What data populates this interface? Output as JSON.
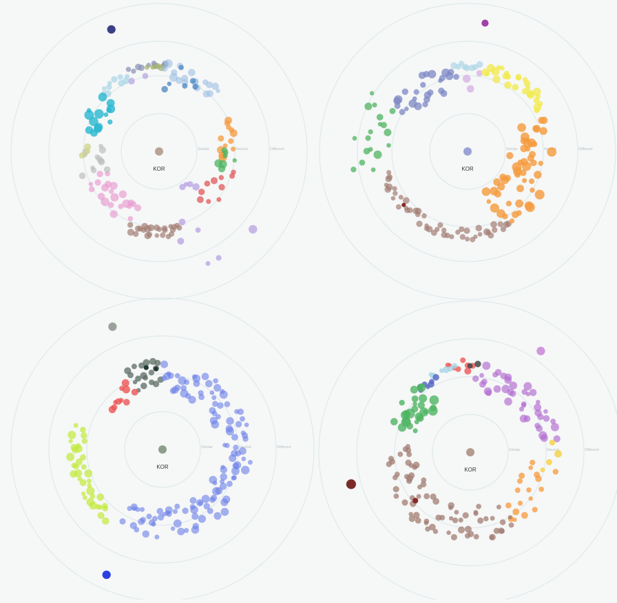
{
  "chart_data": [
    {
      "type": "scatter",
      "center_label": "KOR",
      "center_color": "#b9a394",
      "ring_labels": [
        "Similar",
        "Neutral",
        "Different"
      ],
      "groups": [
        {
          "color": "#3b3f86",
          "n": 1,
          "angle": [
            -112,
            -112
          ],
          "radius": [
            1.7,
            1.7
          ],
          "size": [
            6,
            6
          ],
          "opacity": 1
        },
        {
          "color": "#8c95b8",
          "n": 9,
          "angle": [
            -110,
            -85
          ],
          "radius": [
            1.08,
            1.15
          ],
          "size": [
            3,
            5
          ],
          "opacity": 0.75
        },
        {
          "color": "#a6b36a",
          "n": 4,
          "angle": [
            -98,
            -88
          ],
          "radius": [
            1.08,
            1.13
          ],
          "size": [
            3,
            5
          ],
          "opacity": 0.75
        },
        {
          "color": "#9ebfe4",
          "n": 18,
          "angle": [
            -85,
            -45
          ],
          "radius": [
            0.95,
            1.15
          ],
          "size": [
            3,
            6
          ],
          "opacity": 0.6
        },
        {
          "color": "#4a87c2",
          "n": 6,
          "angle": [
            -85,
            -60
          ],
          "radius": [
            0.8,
            1.15
          ],
          "size": [
            3,
            5
          ],
          "opacity": 0.75
        },
        {
          "color": "#b5a7e0",
          "n": 2,
          "angle": [
            -112,
            -100
          ],
          "radius": [
            0.95,
            1.0
          ],
          "size": [
            4,
            5
          ],
          "opacity": 0.75
        },
        {
          "color": "#a8d4e6",
          "n": 10,
          "angle": [
            -135,
            -112
          ],
          "radius": [
            0.98,
            1.1
          ],
          "size": [
            3,
            5
          ],
          "opacity": 0.7
        },
        {
          "color": "#28b6cf",
          "n": 14,
          "angle": [
            -165,
            -135
          ],
          "radius": [
            0.68,
            1.08
          ],
          "size": [
            3,
            7
          ],
          "opacity": 0.8
        },
        {
          "color": "#f59a3c",
          "n": 12,
          "angle": [
            -25,
            5
          ],
          "radius": [
            0.78,
            1.05
          ],
          "size": [
            3,
            6
          ],
          "opacity": 0.75
        },
        {
          "color": "#4fb462",
          "n": 7,
          "angle": [
            0,
            15
          ],
          "radius": [
            0.76,
            1.0
          ],
          "size": [
            3,
            6
          ],
          "opacity": 0.75
        },
        {
          "color": "#e0585a",
          "n": 10,
          "angle": [
            15,
            50
          ],
          "radius": [
            0.75,
            1.02
          ],
          "size": [
            3,
            5
          ],
          "opacity": 0.75
        },
        {
          "color": "#b39be0",
          "n": 10,
          "angle": [
            40,
            75
          ],
          "radius": [
            0.55,
            1.6
          ],
          "size": [
            3,
            6
          ],
          "opacity": 0.7
        },
        {
          "color": "#a27e73",
          "n": 24,
          "angle": [
            75,
            110
          ],
          "radius": [
            0.98,
            1.12
          ],
          "size": [
            3,
            5
          ],
          "opacity": 0.7
        },
        {
          "color": "#e89ad0",
          "n": 22,
          "angle": [
            110,
            160
          ],
          "radius": [
            0.7,
            1.05
          ],
          "size": [
            3,
            6
          ],
          "opacity": 0.65
        },
        {
          "color": "#bdbdbd",
          "n": 12,
          "angle": [
            160,
            185
          ],
          "radius": [
            0.7,
            1.08
          ],
          "size": [
            3,
            5
          ],
          "opacity": 0.7
        },
        {
          "color": "#cfd48a",
          "n": 3,
          "angle": [
            176,
            184
          ],
          "radius": [
            0.72,
            1.02
          ],
          "size": [
            3,
            5
          ],
          "opacity": 0.8
        }
      ]
    },
    {
      "type": "scatter",
      "center_label": "KOR",
      "center_color": "#9aa2d6",
      "ring_labels": [
        "Similar",
        "Neutral",
        "Different"
      ],
      "groups": [
        {
          "color": "#a040a8",
          "n": 1,
          "angle": [
            -83,
            -83
          ],
          "radius": [
            1.68,
            1.68
          ],
          "size": [
            5,
            5
          ],
          "opacity": 1
        },
        {
          "color": "#d7b3e4",
          "n": 3,
          "angle": [
            -92,
            -80
          ],
          "radius": [
            0.8,
            1.12
          ],
          "size": [
            4,
            6
          ],
          "opacity": 0.8
        },
        {
          "color": "#aed6e6",
          "n": 8,
          "angle": [
            -100,
            -82
          ],
          "radius": [
            1.05,
            1.15
          ],
          "size": [
            3,
            5
          ],
          "opacity": 0.7
        },
        {
          "color": "#f2ea4a",
          "n": 26,
          "angle": [
            -78,
            -30
          ],
          "radius": [
            1.0,
            1.2
          ],
          "size": [
            3,
            6
          ],
          "opacity": 0.75
        },
        {
          "color": "#7c88c4",
          "n": 26,
          "angle": [
            -150,
            -100
          ],
          "radius": [
            0.8,
            1.15
          ],
          "size": [
            3,
            6
          ],
          "opacity": 0.75
        },
        {
          "color": "#4fb462",
          "n": 18,
          "angle": [
            -190,
            -150
          ],
          "radius": [
            1.0,
            1.5
          ],
          "size": [
            3,
            6
          ],
          "opacity": 0.75
        },
        {
          "color": "#a27e73",
          "n": 48,
          "angle": [
            60,
            165
          ],
          "radius": [
            1.0,
            1.15
          ],
          "size": [
            3,
            5
          ],
          "opacity": 0.7
        },
        {
          "color": "#8a2a2a",
          "n": 1,
          "angle": [
            140,
            140
          ],
          "radius": [
            1.08,
            1.08
          ],
          "size": [
            3,
            3
          ],
          "opacity": 1
        },
        {
          "color": "#f59a3c",
          "n": 52,
          "angle": [
            -25,
            68
          ],
          "radius": [
            0.55,
            1.1
          ],
          "size": [
            3,
            7
          ],
          "opacity": 0.8
        }
      ]
    },
    {
      "type": "scatter",
      "center_label": "KOR",
      "center_color": "#8c9e8c",
      "ring_labels": [
        "Similar",
        "Neutral",
        "Different"
      ],
      "groups": [
        {
          "color": "#9aa39a",
          "n": 1,
          "angle": [
            -113,
            -113
          ],
          "radius": [
            1.72,
            1.72
          ],
          "size": [
            6,
            6
          ],
          "opacity": 1
        },
        {
          "color": "#2b3fe0",
          "n": 1,
          "angle": [
            114,
            114
          ],
          "radius": [
            1.78,
            1.78
          ],
          "size": [
            6,
            6
          ],
          "opacity": 1
        },
        {
          "color": "#5b6b63",
          "n": 18,
          "angle": [
            -115,
            -92
          ],
          "radius": [
            0.8,
            1.15
          ],
          "size": [
            3,
            5
          ],
          "opacity": 0.75
        },
        {
          "color": "#1f3a33",
          "n": 2,
          "angle": [
            -100,
            -94
          ],
          "radius": [
            1.05,
            1.1
          ],
          "size": [
            3,
            4
          ],
          "opacity": 1
        },
        {
          "color": "#ee5555",
          "n": 10,
          "angle": [
            -140,
            -116
          ],
          "radius": [
            0.75,
            1.05
          ],
          "size": [
            3,
            6
          ],
          "opacity": 0.8
        },
        {
          "color": "#c2ea3a",
          "n": 36,
          "angle": [
            -165,
            -230
          ],
          "radius": [
            1.0,
            1.2
          ],
          "size": [
            3,
            6
          ],
          "opacity": 0.7
        },
        {
          "color": "#6b7fe8",
          "n": 120,
          "angle": [
            -90,
            120
          ],
          "radius": [
            0.75,
            1.15
          ],
          "size": [
            3,
            6
          ],
          "opacity": 0.6
        }
      ]
    },
    {
      "type": "scatter",
      "center_label": "KOR",
      "center_color": "#b59a90",
      "ring_labels": [
        "Similar",
        "Neutral",
        "Different"
      ],
      "groups": [
        {
          "color": "#7b2a2a",
          "n": 1,
          "angle": [
            -196,
            -196
          ],
          "radius": [
            1.6,
            1.6
          ],
          "size": [
            7,
            7
          ],
          "opacity": 1
        },
        {
          "color": "#c77ed4",
          "n": 1,
          "angle": [
            -54,
            -54
          ],
          "radius": [
            1.6,
            1.6
          ],
          "size": [
            6,
            6
          ],
          "opacity": 0.8
        },
        {
          "color": "#f06060",
          "n": 8,
          "angle": [
            -105,
            -88
          ],
          "radius": [
            1.05,
            1.2
          ],
          "size": [
            3,
            5
          ],
          "opacity": 0.85
        },
        {
          "color": "#444444",
          "n": 2,
          "angle": [
            -90,
            -84
          ],
          "radius": [
            1.08,
            1.15
          ],
          "size": [
            3,
            5
          ],
          "opacity": 0.85
        },
        {
          "color": "#a8d4e6",
          "n": 6,
          "angle": [
            -118,
            -100
          ],
          "radius": [
            1.08,
            1.15
          ],
          "size": [
            3,
            5
          ],
          "opacity": 0.8
        },
        {
          "color": "#5b6bc7",
          "n": 7,
          "angle": [
            -130,
            -115
          ],
          "radius": [
            0.95,
            1.08
          ],
          "size": [
            3,
            5
          ],
          "opacity": 0.85
        },
        {
          "color": "#b06ad0",
          "n": 40,
          "angle": [
            -85,
            -10
          ],
          "radius": [
            0.8,
            1.15
          ],
          "size": [
            3,
            6
          ],
          "opacity": 0.65
        },
        {
          "color": "#f6d44a",
          "n": 4,
          "angle": [
            -6,
            15
          ],
          "radius": [
            0.9,
            1.15
          ],
          "size": [
            3,
            6
          ],
          "opacity": 0.85
        },
        {
          "color": "#f59a3c",
          "n": 18,
          "angle": [
            10,
            60
          ],
          "radius": [
            0.7,
            1.15
          ],
          "size": [
            3,
            5
          ],
          "opacity": 0.75
        },
        {
          "color": "#4fb462",
          "n": 26,
          "angle": [
            -160,
            -125
          ],
          "radius": [
            0.7,
            1.1
          ],
          "size": [
            3,
            7
          ],
          "opacity": 0.8
        },
        {
          "color": "#a27e73",
          "n": 70,
          "angle": [
            60,
            185
          ],
          "radius": [
            0.7,
            1.15
          ],
          "size": [
            3,
            5
          ],
          "opacity": 0.75
        },
        {
          "color": "#8a2a2a",
          "n": 1,
          "angle": [
            140,
            140
          ],
          "radius": [
            0.95,
            0.95
          ],
          "size": [
            4,
            4
          ],
          "opacity": 1
        }
      ]
    }
  ]
}
